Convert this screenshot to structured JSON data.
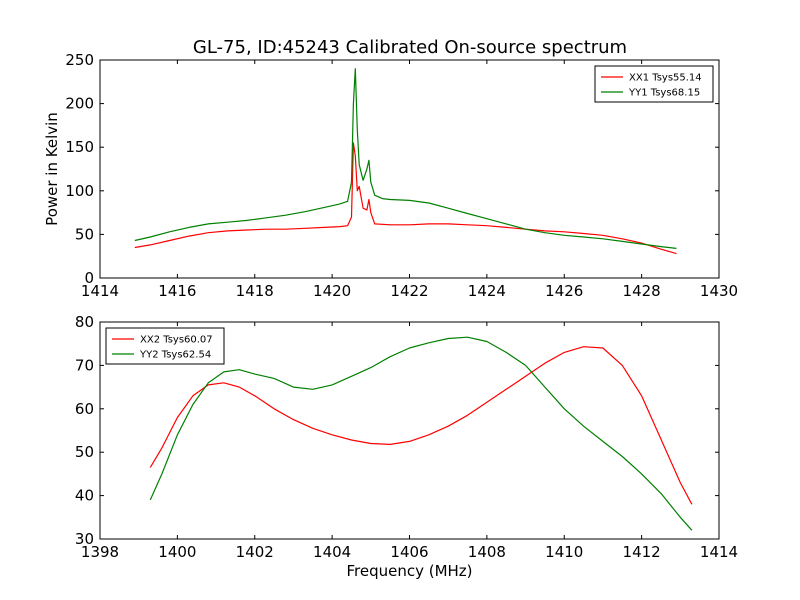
{
  "title": "GL-75, ID:45243 Calibrated On-source spectrum",
  "chart_data": [
    {
      "type": "line",
      "ylabel": "Power in Kelvin",
      "xlabel": "",
      "xlim": [
        1414,
        1430
      ],
      "ylim": [
        0,
        250
      ],
      "xticks": [
        1414,
        1416,
        1418,
        1420,
        1422,
        1424,
        1426,
        1428,
        1430
      ],
      "yticks": [
        0,
        50,
        100,
        150,
        200,
        250
      ],
      "grid": false,
      "legend": "top-right",
      "series": [
        {
          "name": "XX1 Tsys55.14",
          "color": "#ff0000",
          "points": [
            [
              1414.9,
              35
            ],
            [
              1415.3,
              38
            ],
            [
              1415.8,
              43
            ],
            [
              1416.3,
              48
            ],
            [
              1416.8,
              52
            ],
            [
              1417.3,
              54
            ],
            [
              1417.8,
              55
            ],
            [
              1418.3,
              56
            ],
            [
              1418.8,
              56
            ],
            [
              1419.3,
              57
            ],
            [
              1419.8,
              58
            ],
            [
              1420.2,
              59
            ],
            [
              1420.4,
              60
            ],
            [
              1420.5,
              70
            ],
            [
              1420.55,
              155
            ],
            [
              1420.6,
              140
            ],
            [
              1420.65,
              100
            ],
            [
              1420.7,
              105
            ],
            [
              1420.8,
              80
            ],
            [
              1420.9,
              78
            ],
            [
              1420.95,
              90
            ],
            [
              1421.0,
              75
            ],
            [
              1421.1,
              62
            ],
            [
              1421.5,
              61
            ],
            [
              1422.0,
              61
            ],
            [
              1422.5,
              62
            ],
            [
              1423.0,
              62
            ],
            [
              1423.5,
              61
            ],
            [
              1424.0,
              60
            ],
            [
              1424.5,
              58
            ],
            [
              1425.0,
              56
            ],
            [
              1425.5,
              54
            ],
            [
              1426.0,
              53
            ],
            [
              1426.5,
              51
            ],
            [
              1427.0,
              49
            ],
            [
              1427.5,
              45
            ],
            [
              1428.0,
              40
            ],
            [
              1428.5,
              33
            ],
            [
              1428.9,
              28
            ]
          ]
        },
        {
          "name": "YY1 Tsys68.15",
          "color": "#008000",
          "points": [
            [
              1414.9,
              43
            ],
            [
              1415.3,
              47
            ],
            [
              1415.8,
              53
            ],
            [
              1416.3,
              58
            ],
            [
              1416.8,
              62
            ],
            [
              1417.3,
              64
            ],
            [
              1417.8,
              66
            ],
            [
              1418.3,
              69
            ],
            [
              1418.8,
              72
            ],
            [
              1419.3,
              76
            ],
            [
              1419.8,
              81
            ],
            [
              1420.2,
              85
            ],
            [
              1420.4,
              88
            ],
            [
              1420.5,
              110
            ],
            [
              1420.55,
              200
            ],
            [
              1420.6,
              240
            ],
            [
              1420.65,
              170
            ],
            [
              1420.7,
              130
            ],
            [
              1420.8,
              112
            ],
            [
              1420.9,
              125
            ],
            [
              1420.95,
              135
            ],
            [
              1421.0,
              110
            ],
            [
              1421.1,
              95
            ],
            [
              1421.3,
              91
            ],
            [
              1421.5,
              90
            ],
            [
              1422.0,
              89
            ],
            [
              1422.5,
              86
            ],
            [
              1423.0,
              80
            ],
            [
              1423.5,
              74
            ],
            [
              1424.0,
              68
            ],
            [
              1424.5,
              62
            ],
            [
              1425.0,
              56
            ],
            [
              1425.5,
              52
            ],
            [
              1426.0,
              49
            ],
            [
              1426.5,
              47
            ],
            [
              1427.0,
              45
            ],
            [
              1427.5,
              42
            ],
            [
              1428.0,
              39
            ],
            [
              1428.5,
              36
            ],
            [
              1428.9,
              34
            ]
          ]
        }
      ]
    },
    {
      "type": "line",
      "ylabel": "",
      "xlabel": "Frequency (MHz)",
      "xlim": [
        1398,
        1414
      ],
      "ylim": [
        30,
        80
      ],
      "xticks": [
        1398,
        1400,
        1402,
        1404,
        1406,
        1408,
        1410,
        1412,
        1414
      ],
      "yticks": [
        30,
        40,
        50,
        60,
        70,
        80
      ],
      "grid": false,
      "legend": "top-left",
      "series": [
        {
          "name": "XX2 Tsys60.07",
          "color": "#ff0000",
          "points": [
            [
              1399.3,
              46.5
            ],
            [
              1399.6,
              51
            ],
            [
              1400.0,
              58
            ],
            [
              1400.4,
              63
            ],
            [
              1400.8,
              65.5
            ],
            [
              1401.2,
              66
            ],
            [
              1401.6,
              65
            ],
            [
              1402.0,
              63
            ],
            [
              1402.5,
              60
            ],
            [
              1403.0,
              57.5
            ],
            [
              1403.5,
              55.5
            ],
            [
              1404.0,
              54
            ],
            [
              1404.5,
              52.8
            ],
            [
              1405.0,
              52
            ],
            [
              1405.5,
              51.8
            ],
            [
              1406.0,
              52.5
            ],
            [
              1406.5,
              54
            ],
            [
              1407.0,
              56
            ],
            [
              1407.5,
              58.5
            ],
            [
              1408.0,
              61.5
            ],
            [
              1408.5,
              64.5
            ],
            [
              1409.0,
              67.5
            ],
            [
              1409.5,
              70.5
            ],
            [
              1410.0,
              73
            ],
            [
              1410.5,
              74.3
            ],
            [
              1411.0,
              74
            ],
            [
              1411.5,
              70
            ],
            [
              1412.0,
              63
            ],
            [
              1412.5,
              53
            ],
            [
              1413.0,
              43
            ],
            [
              1413.3,
              38
            ]
          ]
        },
        {
          "name": "YY2 Tsys62.54",
          "color": "#008000",
          "points": [
            [
              1399.3,
              39
            ],
            [
              1399.6,
              45
            ],
            [
              1400.0,
              54
            ],
            [
              1400.4,
              61
            ],
            [
              1400.8,
              66
            ],
            [
              1401.2,
              68.5
            ],
            [
              1401.6,
              69
            ],
            [
              1402.0,
              68
            ],
            [
              1402.5,
              67
            ],
            [
              1403.0,
              65
            ],
            [
              1403.5,
              64.5
            ],
            [
              1404.0,
              65.5
            ],
            [
              1404.5,
              67.5
            ],
            [
              1405.0,
              69.5
            ],
            [
              1405.5,
              72
            ],
            [
              1406.0,
              74
            ],
            [
              1406.5,
              75.2
            ],
            [
              1407.0,
              76.2
            ],
            [
              1407.5,
              76.5
            ],
            [
              1408.0,
              75.5
            ],
            [
              1408.5,
              73
            ],
            [
              1409.0,
              70
            ],
            [
              1409.5,
              65
            ],
            [
              1410.0,
              60
            ],
            [
              1410.5,
              56
            ],
            [
              1411.0,
              52.5
            ],
            [
              1411.5,
              49
            ],
            [
              1412.0,
              45
            ],
            [
              1412.5,
              40.5
            ],
            [
              1413.0,
              35
            ],
            [
              1413.3,
              32
            ]
          ]
        }
      ]
    }
  ]
}
